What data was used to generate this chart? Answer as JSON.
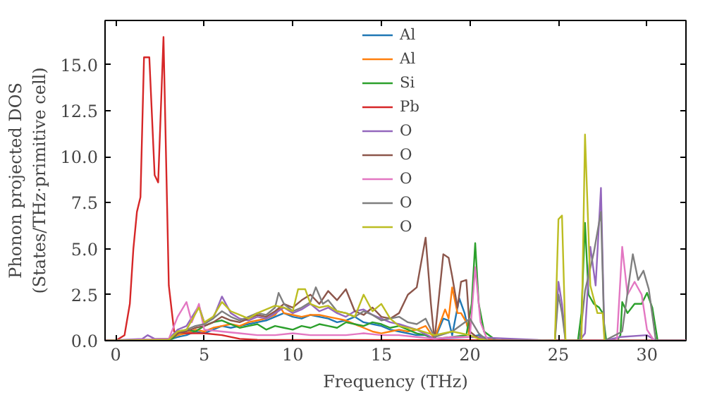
{
  "chart_data": {
    "type": "line",
    "xlabel": "Frequency (THz)",
    "ylabel": "Phonon projected DOS\n(States/THz·primitive cell)",
    "xlim": [
      -0.6,
      32.2
    ],
    "ylim": [
      0,
      17.4
    ],
    "xticks": [
      0,
      5,
      10,
      15,
      20,
      25,
      30
    ],
    "yticks": [
      {
        "value": 0,
        "label": "0.0"
      },
      {
        "value": 2.5,
        "label": "2.5"
      },
      {
        "value": 5,
        "label": "5.0"
      },
      {
        "value": 7.5,
        "label": "7.5"
      },
      {
        "value": 10,
        "label": "10.0"
      },
      {
        "value": 12.5,
        "label": "12.5"
      },
      {
        "value": 15,
        "label": "15.0"
      }
    ],
    "legend": "top",
    "grid": false,
    "line_style": "solid",
    "marker": "none",
    "series": [
      {
        "name": "Al",
        "color": "#1f77b4",
        "x": [
          -0.6,
          3,
          3.5,
          4,
          4.5,
          5,
          5.5,
          6,
          6.5,
          7,
          7.5,
          8,
          8.5,
          9,
          9.5,
          10,
          10.5,
          11,
          11.5,
          12,
          12.5,
          13,
          13.5,
          14,
          14.5,
          15,
          15.5,
          16,
          16.5,
          17,
          17.5,
          18,
          18.5,
          18.8,
          19,
          19.4,
          19.7,
          20,
          20.5,
          21,
          22,
          32.2
        ],
        "values": [
          0,
          0.05,
          0.2,
          0.3,
          0.5,
          0.4,
          0.6,
          0.8,
          0.7,
          0.8,
          0.9,
          1.0,
          1.1,
          1.3,
          1.5,
          1.3,
          1.2,
          1.4,
          1.3,
          1.2,
          1.0,
          1.1,
          1.3,
          1.0,
          0.9,
          0.8,
          0.6,
          0.5,
          0.4,
          0.3,
          0.3,
          0.05,
          1.2,
          1.1,
          0.3,
          2.3,
          1.5,
          0.2,
          0.3,
          0.1,
          0,
          0
        ]
      },
      {
        "name": "Al",
        "color": "#ff7f0e",
        "x": [
          -0.6,
          3,
          3.5,
          4,
          4.5,
          5,
          5.5,
          6,
          6.5,
          7,
          7.5,
          8,
          8.5,
          9,
          9.3,
          9.5,
          10,
          10.5,
          11,
          11.5,
          12,
          12.5,
          13,
          13.5,
          14,
          14.5,
          15,
          15.5,
          16,
          16.5,
          17,
          17.5,
          18,
          18.6,
          18.8,
          19,
          19.3,
          19.5,
          19.8,
          20,
          20.5,
          21,
          22,
          32.2
        ],
        "values": [
          0,
          0.05,
          0.3,
          0.4,
          0.6,
          0.5,
          0.7,
          0.8,
          0.9,
          0.8,
          1.0,
          1.1,
          1.2,
          1.4,
          1.8,
          1.5,
          1.4,
          1.3,
          1.4,
          1.4,
          1.3,
          1.2,
          1.1,
          0.9,
          0.7,
          0.5,
          0.4,
          0.5,
          0.6,
          0.5,
          0.6,
          0.8,
          0.1,
          1.7,
          1.2,
          2.9,
          1.5,
          1.5,
          1.0,
          0.2,
          0.2,
          0.1,
          0,
          0
        ]
      },
      {
        "name": "Si",
        "color": "#2ca02c",
        "x": [
          -0.5,
          3.2,
          3.5,
          4,
          4.5,
          5,
          5.5,
          6,
          6.5,
          7,
          7.5,
          8,
          8.5,
          9,
          9.5,
          10,
          10.5,
          11,
          11.5,
          12,
          12.5,
          13,
          13.5,
          14,
          14.5,
          15,
          15.5,
          16,
          16.5,
          17,
          17.5,
          18,
          19,
          19.8,
          20.1,
          20.3,
          20.5,
          20.8,
          21.5,
          26.1,
          26.3,
          26.5,
          26.7,
          27,
          27.3,
          27.5,
          27.7,
          28.3,
          28.5,
          28.6,
          28.9,
          29.3,
          29.7,
          30,
          30.3,
          30.6,
          32
        ],
        "values": [
          0,
          0.1,
          0.4,
          0.6,
          0.5,
          0.8,
          1.0,
          1.1,
          0.9,
          0.7,
          0.8,
          0.9,
          0.6,
          0.8,
          0.7,
          0.6,
          0.8,
          0.7,
          0.9,
          0.8,
          0.7,
          1.0,
          0.9,
          0.8,
          1.0,
          0.9,
          0.7,
          0.8,
          0.6,
          0.4,
          0.3,
          0.1,
          0.2,
          0.3,
          2.0,
          5.3,
          2.0,
          0.5,
          0,
          0,
          1.5,
          6.4,
          2.5,
          2.0,
          1.8,
          1.5,
          0,
          0,
          0.3,
          2.1,
          1.5,
          2.0,
          2.0,
          2.6,
          1.8,
          0,
          0
        ]
      },
      {
        "name": "Pb",
        "color": "#d62728",
        "x": [
          -0.6,
          0,
          0.5,
          0.8,
          1.0,
          1.2,
          1.4,
          1.6,
          1.9,
          2.2,
          2.4,
          2.7,
          3.0,
          3.3,
          4,
          5,
          6,
          7,
          8,
          32.2
        ],
        "values": [
          0,
          0,
          0.3,
          2,
          5,
          7,
          7.8,
          15.4,
          15.4,
          9,
          8.6,
          16.5,
          3,
          0.5,
          0.4,
          0.4,
          0.3,
          0.1,
          0.05,
          0
        ]
      },
      {
        "name": "O",
        "color": "#9467bd",
        "x": [
          -0.6,
          1.5,
          1.8,
          2.2,
          3,
          3.5,
          4,
          4.7,
          5,
          5.5,
          6,
          6.5,
          7,
          7.5,
          8,
          8.5,
          9,
          9.5,
          10,
          10.5,
          11,
          11.5,
          12,
          12.5,
          13,
          13.5,
          14,
          14.5,
          15,
          15.5,
          16,
          17,
          18,
          20,
          24.8,
          25,
          25.2,
          25.4,
          26.2,
          26.5,
          26.8,
          27.1,
          27.4,
          27.6,
          28.5,
          30,
          30.5,
          32.2
        ],
        "values": [
          0,
          0.1,
          0.3,
          0.1,
          0.1,
          0.6,
          0.8,
          1.9,
          1.0,
          1.2,
          2.4,
          1.5,
          1.2,
          1.1,
          1.3,
          1.2,
          1.5,
          1.8,
          1.5,
          1.7,
          2.0,
          1.6,
          1.8,
          1.5,
          1.3,
          1.6,
          1.7,
          1.4,
          1.2,
          1.0,
          0.9,
          0.6,
          0.1,
          0.2,
          0,
          3.2,
          2.0,
          0,
          0,
          0.4,
          5.1,
          3.0,
          8.3,
          0,
          0.2,
          0.3,
          0,
          0
        ]
      },
      {
        "name": "O",
        "color": "#8c564b",
        "x": [
          -0.6,
          3,
          3.5,
          4,
          4.5,
          5,
          5.5,
          6,
          6.5,
          7,
          7.5,
          8,
          8.5,
          9,
          9.5,
          10,
          10.5,
          11,
          11.5,
          12,
          12.5,
          13,
          13.5,
          14,
          14.5,
          15,
          15.5,
          16,
          16.5,
          17,
          17.5,
          17.8,
          18,
          18.5,
          18.8,
          19,
          19.3,
          19.5,
          19.8,
          20,
          20.5,
          21,
          32.2
        ],
        "values": [
          0,
          0.05,
          0.4,
          0.5,
          0.7,
          0.8,
          1.0,
          1.3,
          1.1,
          1.0,
          1.2,
          1.4,
          1.3,
          1.6,
          2.0,
          1.8,
          2.2,
          2.5,
          2.0,
          2.7,
          2.2,
          2.8,
          1.6,
          1.4,
          1.8,
          1.3,
          1.2,
          1.5,
          2.5,
          2.9,
          5.6,
          2.0,
          0,
          4.7,
          4.5,
          3.5,
          1.8,
          3.2,
          3.3,
          0.5,
          0.1,
          0,
          0
        ]
      },
      {
        "name": "O",
        "color": "#e377c2",
        "x": [
          -0.6,
          3,
          3.5,
          4,
          4.3,
          4.7,
          5,
          6,
          7,
          8,
          9,
          10,
          11,
          12,
          13,
          14,
          15,
          16,
          17,
          18,
          19,
          20,
          20.3,
          20.6,
          21,
          28.3,
          28.6,
          28.9,
          29.3,
          29.7,
          30,
          30.4,
          32.2
        ],
        "values": [
          0,
          0.1,
          1.3,
          2.1,
          1.0,
          2.0,
          0.6,
          0.5,
          0.4,
          0.3,
          0.3,
          0.4,
          0.3,
          0.3,
          0.3,
          0.4,
          0.3,
          0.3,
          0.2,
          0.1,
          0.2,
          0.2,
          4.0,
          1.0,
          0,
          0,
          5.1,
          2.5,
          3.2,
          2.5,
          0.6,
          0,
          0
        ]
      },
      {
        "name": "O",
        "color": "#7f7f7f",
        "x": [
          -0.6,
          3,
          3.5,
          4,
          4.5,
          5,
          5.5,
          6,
          6.5,
          7,
          7.5,
          8,
          8.5,
          9,
          9.2,
          9.5,
          10,
          10.5,
          11,
          11.3,
          11.7,
          12,
          12.5,
          13,
          13.5,
          14,
          14.5,
          15,
          15.5,
          16,
          16.5,
          17,
          17.5,
          18,
          19,
          20,
          20.5,
          21,
          24.8,
          25,
          25.2,
          25.4,
          26.2,
          26.5,
          27,
          27.4,
          27.6,
          28.6,
          29.2,
          29.5,
          29.8,
          30.1,
          30.5,
          32.2
        ],
        "values": [
          0,
          0.05,
          0.5,
          0.6,
          0.8,
          0.9,
          1.2,
          1.6,
          1.3,
          1.1,
          1.3,
          1.5,
          1.4,
          1.8,
          2.6,
          2.0,
          1.6,
          1.8,
          2.1,
          2.9,
          2.0,
          2.2,
          1.6,
          1.5,
          1.3,
          1.6,
          1.4,
          1.1,
          1.2,
          1.3,
          1.0,
          0.9,
          1.2,
          0.2,
          0.5,
          1.2,
          0.4,
          0,
          0,
          2.5,
          1.5,
          0,
          0,
          2.7,
          4.8,
          7.0,
          0,
          0.5,
          4.7,
          3.3,
          3.8,
          2.8,
          0,
          0
        ]
      },
      {
        "name": "O",
        "color": "#bcbd22",
        "x": [
          -0.5,
          3,
          3.5,
          4,
          4.7,
          5,
          5.5,
          6,
          6.5,
          7,
          7.5,
          8,
          8.5,
          9,
          9.5,
          10,
          10.3,
          10.7,
          11,
          11.5,
          12,
          12.5,
          13,
          13.5,
          14,
          14.5,
          15,
          15.5,
          16,
          17,
          18,
          19,
          20,
          20.5,
          21,
          24.8,
          25,
          25.2,
          25.4,
          26.3,
          26.5,
          26.8,
          27.2,
          27.5,
          27.6
        ],
        "values": [
          0,
          0.05,
          0.5,
          0.6,
          1.8,
          1.0,
          1.3,
          2.1,
          1.6,
          1.4,
          1.2,
          1.5,
          1.7,
          1.9,
          1.8,
          1.6,
          2.8,
          2.8,
          2.0,
          1.8,
          1.9,
          1.6,
          1.5,
          1.3,
          2.5,
          1.6,
          2.0,
          1.2,
          0.8,
          0.6,
          0.3,
          0.5,
          0.3,
          0.1,
          0,
          0,
          6.6,
          6.8,
          0,
          0,
          11.2,
          3.0,
          1.5,
          1.5,
          0
        ]
      }
    ]
  }
}
